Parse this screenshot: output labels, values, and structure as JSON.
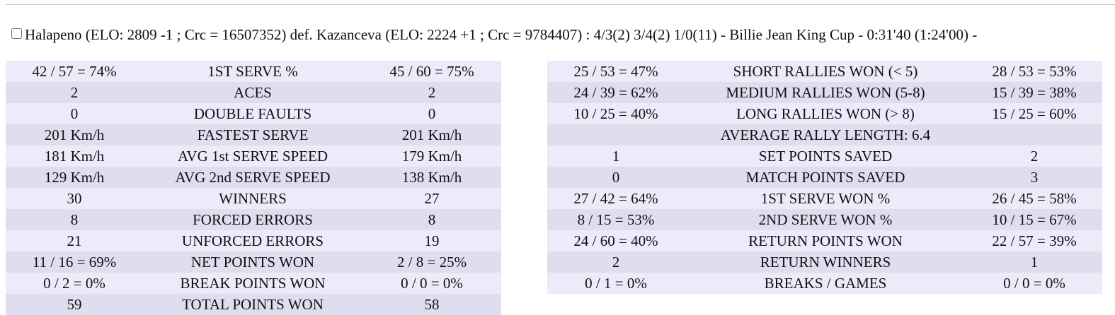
{
  "match": {
    "summary": "Halapeno (ELO: 2809 -1 ; Crc = 16507352) def. Kazanceva (ELO: 2224 +1 ; Crc = 9784407) : 4/3(2) 3/4(2) 1/0(11) - Billie Jean King Cup - 0:31'40 (1:24'00) -"
  },
  "left_stats": [
    {
      "p1": "42 / 57 = 74%",
      "label": "1ST SERVE %",
      "p2": "45 / 60 = 75%"
    },
    {
      "p1": "2",
      "label": "ACES",
      "p2": "2"
    },
    {
      "p1": "0",
      "label": "DOUBLE FAULTS",
      "p2": "0"
    },
    {
      "p1": "201 Km/h",
      "label": "FASTEST SERVE",
      "p2": "201 Km/h"
    },
    {
      "p1": "181 Km/h",
      "label": "AVG 1st SERVE SPEED",
      "p2": "179 Km/h"
    },
    {
      "p1": "129 Km/h",
      "label": "AVG 2nd SERVE SPEED",
      "p2": "138 Km/h"
    },
    {
      "p1": "30",
      "label": "WINNERS",
      "p2": "27"
    },
    {
      "p1": "8",
      "label": "FORCED ERRORS",
      "p2": "8"
    },
    {
      "p1": "21",
      "label": "UNFORCED ERRORS",
      "p2": "19"
    },
    {
      "p1": "11 / 16 = 69%",
      "label": "NET POINTS WON",
      "p2": "2 / 8 = 25%"
    },
    {
      "p1": "0 / 2 = 0%",
      "label": "BREAK POINTS WON",
      "p2": "0 / 0 = 0%"
    },
    {
      "p1": "59",
      "label": "TOTAL POINTS WON",
      "p2": "58"
    }
  ],
  "right_stats": [
    {
      "p1": "25 / 53 = 47%",
      "label": "SHORT RALLIES WON (< 5)",
      "p2": "28 / 53 = 53%"
    },
    {
      "p1": "24 / 39 = 62%",
      "label": "MEDIUM RALLIES WON (5-8)",
      "p2": "15 / 39 = 38%"
    },
    {
      "p1": "10 / 25 = 40%",
      "label": "LONG RALLIES WON (> 8)",
      "p2": "15 / 25 = 60%"
    },
    {
      "p1": "",
      "label": "AVERAGE RALLY LENGTH: 6.4",
      "p2": ""
    },
    {
      "p1": "1",
      "label": "SET POINTS SAVED",
      "p2": "2"
    },
    {
      "p1": "0",
      "label": "MATCH POINTS SAVED",
      "p2": "3"
    },
    {
      "p1": "27 / 42 = 64%",
      "label": "1ST SERVE WON %",
      "p2": "26 / 45 = 58%"
    },
    {
      "p1": "8 / 15 = 53%",
      "label": "2ND SERVE WON %",
      "p2": "10 / 15 = 67%"
    },
    {
      "p1": "24 / 60 = 40%",
      "label": "RETURN POINTS WON",
      "p2": "22 / 57 = 39%"
    },
    {
      "p1": "2",
      "label": "RETURN WINNERS",
      "p2": "1"
    },
    {
      "p1": "0 / 1 = 0%",
      "label": "BREAKS / GAMES",
      "p2": "0 / 0 = 0%"
    }
  ]
}
